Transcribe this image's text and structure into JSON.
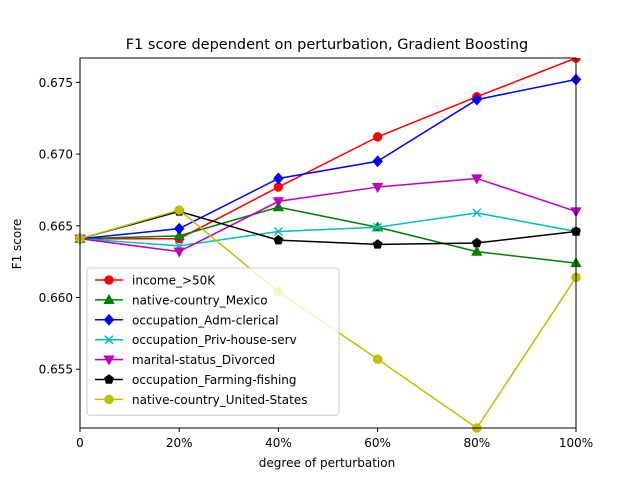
{
  "chart_data": {
    "type": "line",
    "title": "F1 score dependent on perturbation, Gradient Boosting",
    "xlabel": "degree of perturbation",
    "ylabel": "F1 score",
    "x": [
      0,
      20,
      40,
      60,
      80,
      100
    ],
    "xtick_labels": [
      "0",
      "20%",
      "40%",
      "60%",
      "80%",
      "100%"
    ],
    "xlim": [
      0,
      100
    ],
    "ylim": [
      0.6509,
      0.6767
    ],
    "yticks": [
      0.655,
      0.66,
      0.665,
      0.67,
      0.675
    ],
    "ytick_labels": [
      "0.655",
      "0.660",
      "0.665",
      "0.670",
      "0.675"
    ],
    "grid": false,
    "legend_position": "lower-left",
    "series": [
      {
        "name": "income_>50K",
        "color": "#ff0000",
        "marker": "circle",
        "values": [
          0.6641,
          0.6641,
          0.6677,
          0.6712,
          0.674,
          0.6767
        ]
      },
      {
        "name": "native-country_Mexico",
        "color": "#008000",
        "marker": "triangle-up",
        "values": [
          0.6641,
          0.6643,
          0.6663,
          0.6649,
          0.6632,
          0.6624
        ]
      },
      {
        "name": "occupation_Adm-clerical",
        "color": "#0000ff",
        "marker": "diamond",
        "values": [
          0.6641,
          0.6648,
          0.6683,
          0.6695,
          0.6738,
          0.6752
        ]
      },
      {
        "name": "occupation_Priv-house-serv",
        "color": "#00bfbf",
        "marker": "x",
        "values": [
          0.6641,
          0.6636,
          0.6646,
          0.6649,
          0.6659,
          0.6646
        ]
      },
      {
        "name": "marital-status_Divorced",
        "color": "#bf00bf",
        "marker": "triangle-down",
        "values": [
          0.6641,
          0.6632,
          0.6667,
          0.6677,
          0.6683,
          0.666
        ]
      },
      {
        "name": "occupation_Farming-fishing",
        "color": "#000000",
        "marker": "pentagon",
        "values": [
          0.6641,
          0.666,
          0.664,
          0.6637,
          0.6638,
          0.6646
        ]
      },
      {
        "name": "native-country_United-States",
        "color": "#bfbf00",
        "marker": "octagon",
        "values": [
          0.6641,
          0.6661,
          0.6604,
          0.6557,
          0.6509,
          0.6614
        ]
      }
    ]
  }
}
